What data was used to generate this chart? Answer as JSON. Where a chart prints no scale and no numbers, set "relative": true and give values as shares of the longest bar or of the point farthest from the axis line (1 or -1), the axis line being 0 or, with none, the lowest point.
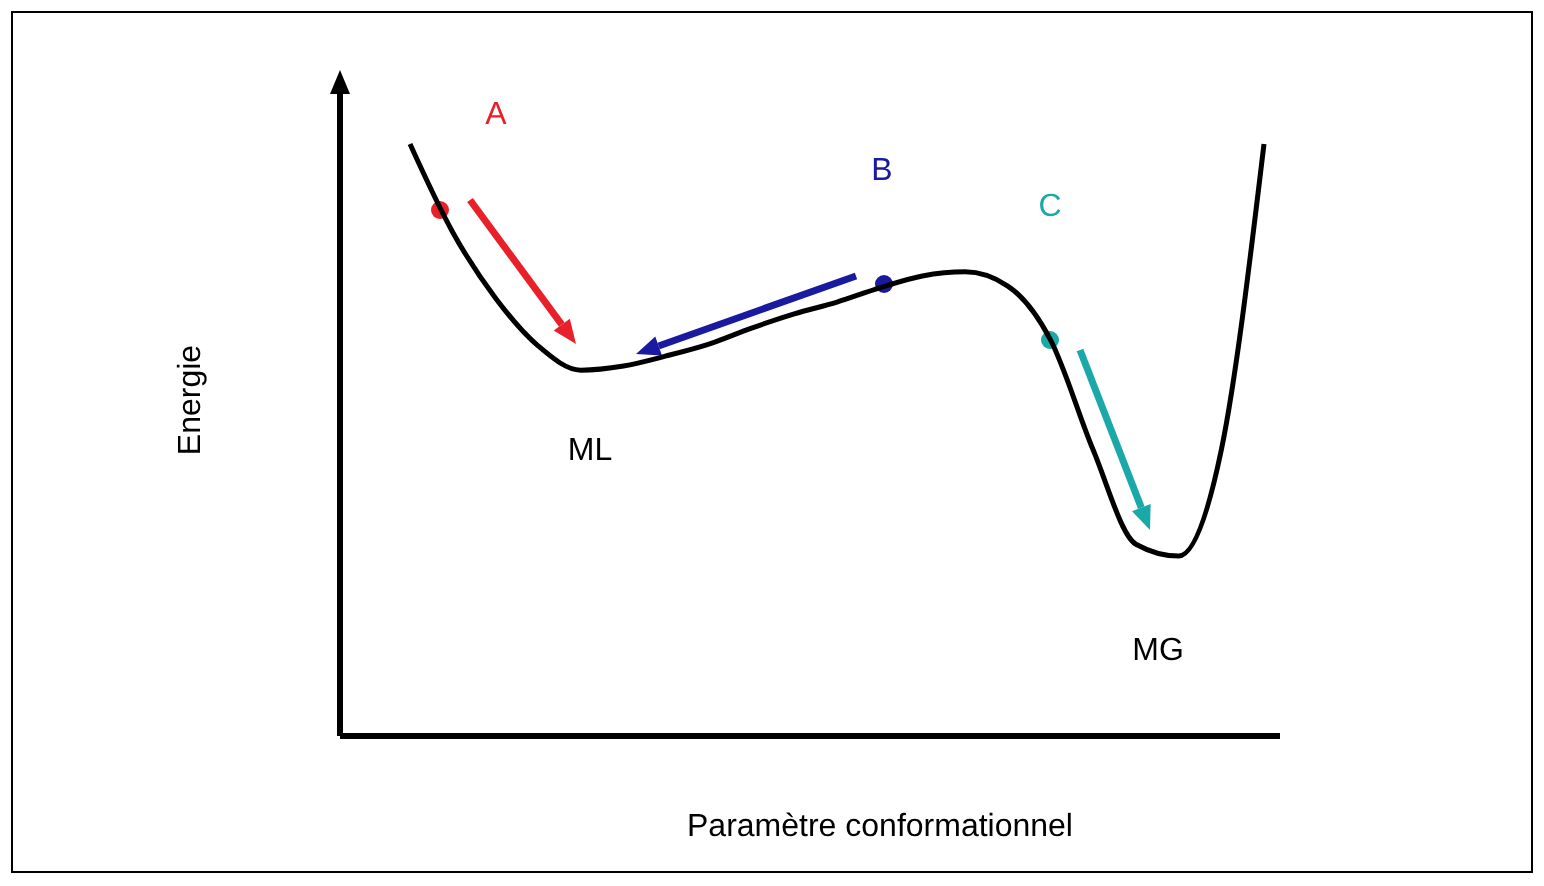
{
  "chart_data": {
    "type": "line",
    "relative": true,
    "xlabel": "Paramètre conformationnel",
    "ylabel": "Energie",
    "categories": [
      null,
      null,
      null,
      null,
      null,
      null,
      null,
      null,
      null,
      null,
      null,
      null,
      null,
      null,
      null,
      null,
      null,
      null,
      null,
      null,
      null
    ],
    "series": [
      {
        "color": "#000000",
        "values": [
          1.0,
          0.851,
          0.74,
          0.659,
          0.618,
          0.625,
          0.642,
          0.662,
          0.689,
          0.713,
          0.733,
          0.757,
          0.777,
          0.784,
          0.76,
          0.669,
          0.483,
          0.324,
          0.304,
          0.483,
          1.0
        ]
      }
    ],
    "annotations": [
      "A",
      "B",
      "C",
      "ML",
      "MG"
    ],
    "marker": "none",
    "line_style": "solid"
  }
}
